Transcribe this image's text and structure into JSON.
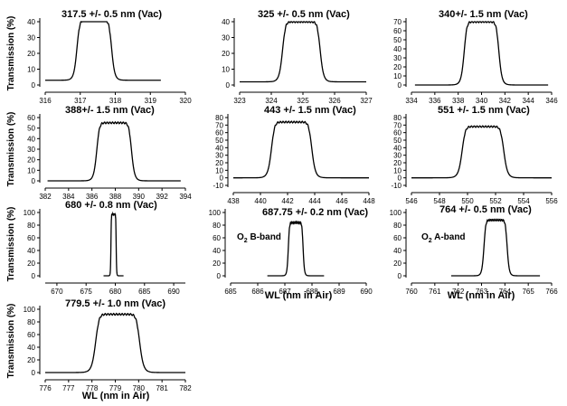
{
  "ylabel": "Transmission (%)",
  "xlabel": "WL (nm in Air)",
  "chart_data": [
    {
      "type": "line",
      "title": "317.5 +/- 0.5 nm (Vac)",
      "center": 317.4,
      "width": 1.0,
      "peak": 41,
      "baseline": 3,
      "xlim": [
        316,
        320
      ],
      "xticks": [
        "316",
        "317",
        "318",
        "319",
        "320"
      ],
      "ylim": [
        0,
        40
      ],
      "yticks": [
        "0",
        "10",
        "20",
        "30",
        "40"
      ]
    },
    {
      "type": "line",
      "title": "325 +/- 0.5 nm (Vac)",
      "center": 324.95,
      "width": 1.2,
      "peak": 40,
      "baseline": 2,
      "xlim": [
        323,
        327
      ],
      "xticks": [
        "323",
        "324",
        "325",
        "326",
        "327"
      ],
      "ylim": [
        0,
        40
      ],
      "yticks": [
        "0",
        "10",
        "20",
        "30",
        "40"
      ]
    },
    {
      "type": "line",
      "title": "340+/- 1.5 nm (Vac)",
      "center": 340,
      "width": 3.0,
      "peak": 70,
      "baseline": 0,
      "xlim": [
        334,
        346
      ],
      "xticks": [
        "334",
        "336",
        "338",
        "340",
        "342",
        "344",
        "346"
      ],
      "ylim": [
        0,
        70
      ],
      "yticks": [
        "0",
        "10",
        "20",
        "30",
        "40",
        "50",
        "60",
        "70"
      ]
    },
    {
      "type": "line",
      "title": "388+/- 1.5 nm (Vac)",
      "center": 387.9,
      "width": 3.0,
      "peak": 55,
      "baseline": 0,
      "xlim": [
        382,
        394
      ],
      "xticks": [
        "382",
        "384",
        "386",
        "388",
        "390",
        "392",
        "394"
      ],
      "ylim": [
        0,
        60
      ],
      "yticks": [
        "0",
        "10",
        "20",
        "30",
        "40",
        "50",
        "60"
      ]
    },
    {
      "type": "line",
      "title": "443 +/- 1.5 nm (Vac)",
      "center": 442.3,
      "width": 3.0,
      "peak": 74,
      "baseline": 0,
      "xlim": [
        438,
        448
      ],
      "xticks": [
        "438",
        "440",
        "442",
        "444",
        "446",
        "448"
      ],
      "ylim": [
        -10,
        80
      ],
      "yticks": [
        "-10",
        "0",
        "10",
        "20",
        "30",
        "40",
        "50",
        "60",
        "70",
        "80"
      ]
    },
    {
      "type": "line",
      "title": "551 +/- 1.5 nm (Vac)",
      "center": 551.1,
      "width": 3.0,
      "peak": 68,
      "baseline": 0,
      "xlim": [
        546,
        556
      ],
      "xticks": [
        "546",
        "548",
        "550",
        "552",
        "554",
        "556"
      ],
      "ylim": [
        -10,
        80
      ],
      "yticks": [
        "-10",
        "0",
        "10",
        "20",
        "30",
        "40",
        "50",
        "60",
        "70",
        "80"
      ]
    },
    {
      "type": "line",
      "title": "680 +/- 0.8 nm (Vac)",
      "center": 679.7,
      "width": 0.9,
      "peak": 97,
      "baseline": 0,
      "xlim": [
        668,
        692
      ],
      "xticks": [
        "670",
        "675",
        "680",
        "685",
        "690"
      ],
      "ylim": [
        0,
        100
      ],
      "yticks": [
        "0",
        "20",
        "40",
        "60",
        "80",
        "100"
      ]
    },
    {
      "type": "line",
      "title": "687.75 +/- 0.2 nm (Vac)",
      "center": 687.4,
      "width": 0.55,
      "peak": 84,
      "baseline": 0,
      "note": [
        "O",
        "2",
        " B-band"
      ],
      "xlim": [
        685,
        690
      ],
      "xticks": [
        "685",
        "686",
        "687",
        "688",
        "689",
        "690"
      ],
      "ylim": [
        0,
        100
      ],
      "yticks": [
        "0",
        "20",
        "40",
        "60",
        "80",
        "100"
      ]
    },
    {
      "type": "line",
      "title": "764 +/- 0.5 nm (Vac)",
      "center": 763.6,
      "width": 1.0,
      "peak": 88,
      "baseline": 0,
      "note": [
        "O",
        "2",
        " A-band"
      ],
      "xlim": [
        760,
        766
      ],
      "xticks": [
        "760",
        "761",
        "762",
        "763",
        "764",
        "765",
        "766"
      ],
      "ylim": [
        0,
        100
      ],
      "yticks": [
        "0",
        "20",
        "40",
        "60",
        "80",
        "100"
      ]
    },
    {
      "type": "line",
      "title": "779.5 +/- 1.0 nm (Vac)",
      "center": 779.1,
      "width": 1.9,
      "peak": 92,
      "baseline": 0,
      "xlim": [
        776,
        782
      ],
      "xticks": [
        "776",
        "777",
        "778",
        "779",
        "780",
        "781",
        "782"
      ],
      "ylim": [
        0,
        100
      ],
      "yticks": [
        "0",
        "20",
        "40",
        "60",
        "80",
        "100"
      ]
    }
  ]
}
